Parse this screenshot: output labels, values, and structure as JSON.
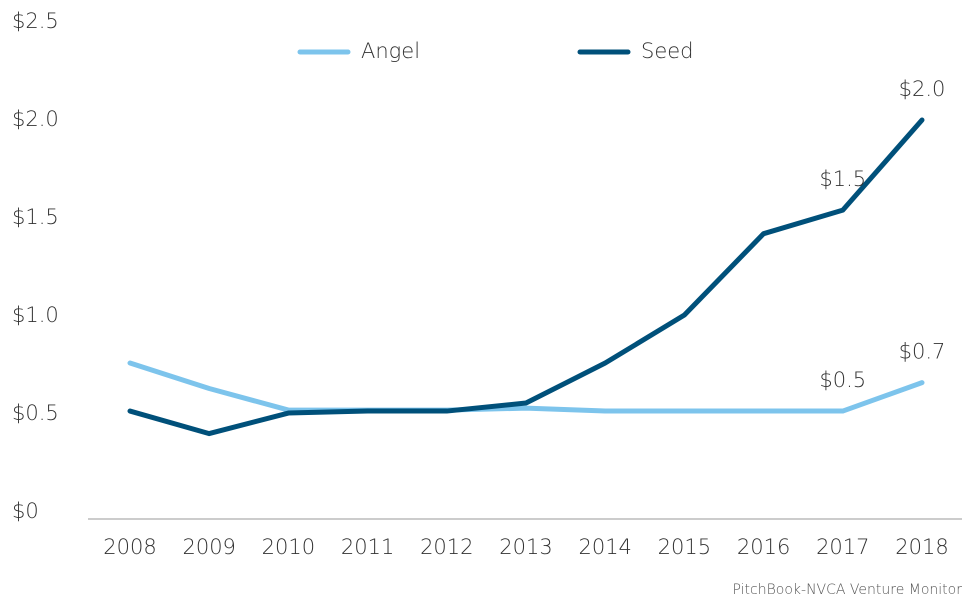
{
  "chart_data": {
    "type": "line",
    "categories": [
      "2008",
      "2009",
      "2010",
      "2011",
      "2012",
      "2013",
      "2014",
      "2015",
      "2016",
      "2017",
      "2018"
    ],
    "series": [
      {
        "name": "Angel",
        "color": "#7dc4ec",
        "values": [
          0.76,
          0.63,
          0.52,
          0.52,
          0.52,
          0.53,
          0.515,
          0.515,
          0.515,
          0.515,
          0.66
        ],
        "value_labels": [
          null,
          null,
          null,
          null,
          null,
          null,
          null,
          null,
          null,
          "$0.5",
          "$0.7"
        ]
      },
      {
        "name": "Seed",
        "color": "#00507a",
        "values": [
          0.515,
          0.4,
          0.505,
          0.515,
          0.515,
          0.556,
          0.76,
          1.005,
          1.42,
          1.54,
          2.0
        ],
        "value_labels": [
          null,
          null,
          null,
          null,
          null,
          null,
          null,
          null,
          null,
          "$1.5",
          "$2.0"
        ]
      }
    ],
    "ylim": [
      0,
      2.5
    ],
    "yticks": [
      {
        "value": 0,
        "label": "$0"
      },
      {
        "value": 0.5,
        "label": "$0.5"
      },
      {
        "value": 1.0,
        "label": "$1.0"
      },
      {
        "value": 1.5,
        "label": "$1.5"
      },
      {
        "value": 2.0,
        "label": "$2.0"
      },
      {
        "value": 2.5,
        "label": "$2.5"
      }
    ],
    "grid": false,
    "legend": "top",
    "source": "PitchBook-NVCA Venture Monitor"
  }
}
